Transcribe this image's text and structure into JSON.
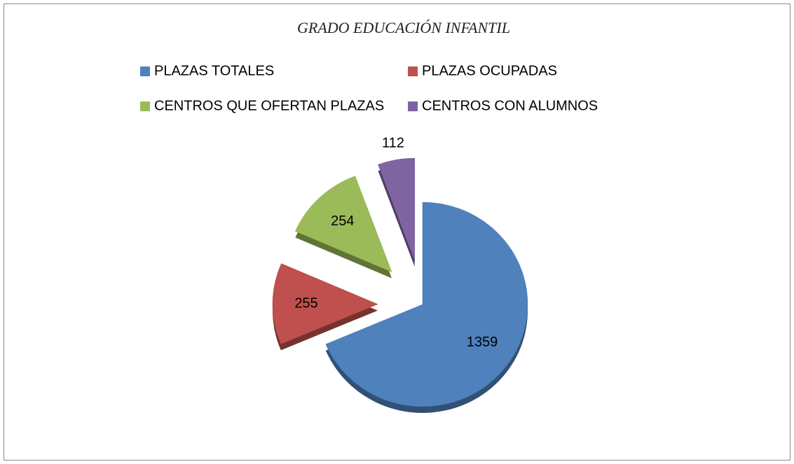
{
  "chart_data": {
    "type": "pie",
    "title": "GRADO EDUCACIÓN INFANTIL",
    "categories": [
      "PLAZAS TOTALES",
      "PLAZAS OCUPADAS",
      "CENTROS QUE OFERTAN PLAZAS",
      "CENTROS CON ALUMNOS"
    ],
    "values": [
      1359,
      255,
      254,
      112
    ],
    "colors": [
      "#4f81bd",
      "#c0504d",
      "#9bbb59",
      "#8064a2"
    ],
    "legend": "top"
  }
}
